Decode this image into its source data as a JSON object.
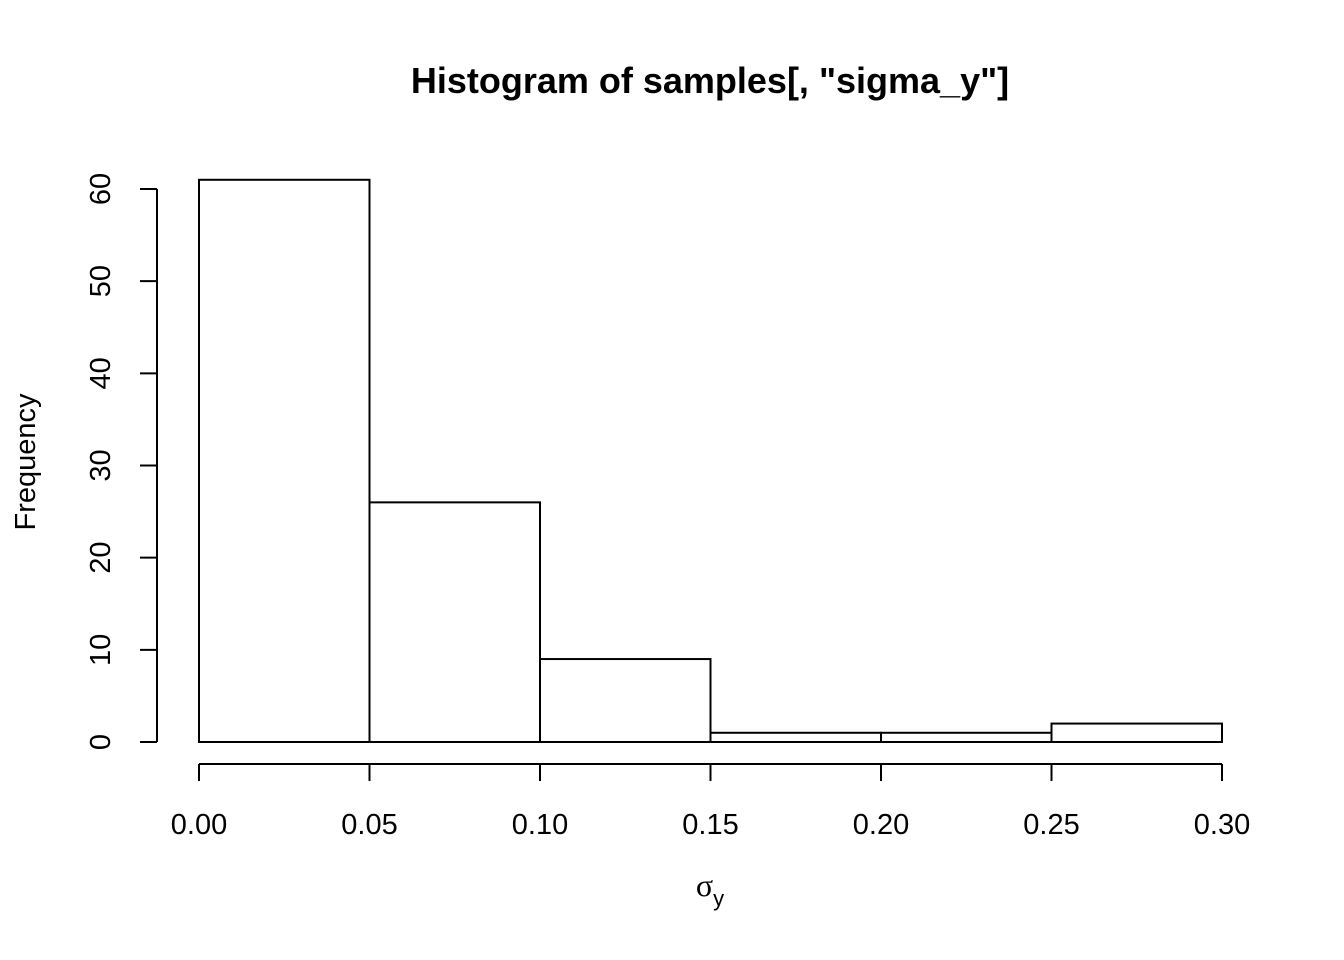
{
  "chart_data": {
    "type": "bar",
    "title": "Histogram of samples[, \"sigma_y\"]",
    "xlabel": {
      "symbol": "σ",
      "subscript": "y"
    },
    "ylabel": "Frequency",
    "bins": [
      {
        "from": 0.0,
        "to": 0.05,
        "count": 61
      },
      {
        "from": 0.05,
        "to": 0.1,
        "count": 26
      },
      {
        "from": 0.1,
        "to": 0.15,
        "count": 9
      },
      {
        "from": 0.15,
        "to": 0.2,
        "count": 1
      },
      {
        "from": 0.2,
        "to": 0.25,
        "count": 1
      },
      {
        "from": 0.25,
        "to": 0.3,
        "count": 2
      }
    ],
    "x_ticks": [
      "0.00",
      "0.05",
      "0.10",
      "0.15",
      "0.20",
      "0.25",
      "0.30"
    ],
    "x_tick_values": [
      0.0,
      0.05,
      0.1,
      0.15,
      0.2,
      0.25,
      0.3
    ],
    "y_ticks": [
      "0",
      "10",
      "20",
      "30",
      "40",
      "50",
      "60"
    ],
    "y_tick_values": [
      0,
      10,
      20,
      30,
      40,
      50,
      60
    ],
    "xlim": [
      0,
      0.3
    ],
    "ylim": [
      0,
      60
    ],
    "grid": false,
    "colors": {
      "bar_fill": "#ffffff",
      "bar_stroke": "#000000",
      "background": "#ffffff"
    }
  }
}
